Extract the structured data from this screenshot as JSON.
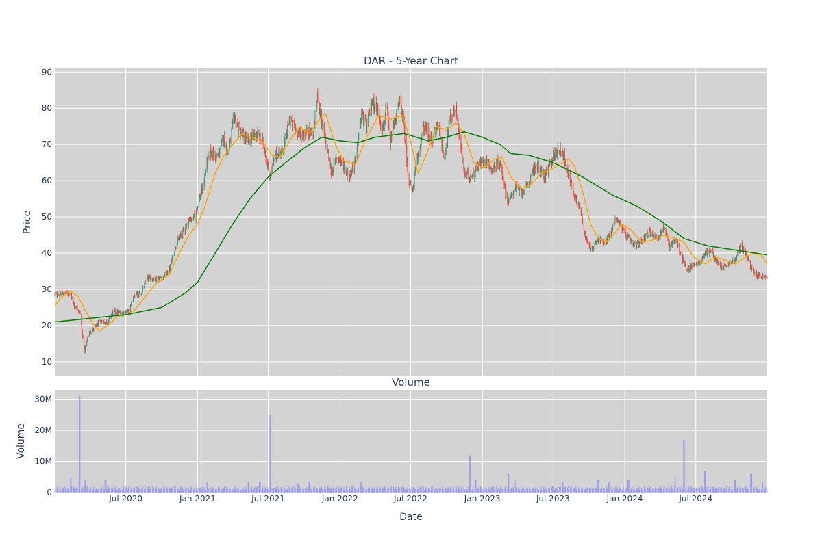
{
  "chart_data": [
    {
      "type": "candlestick",
      "title": "DAR - 5-Year Chart",
      "ylabel": "Price",
      "ylim": [
        6,
        91
      ],
      "yticks": [
        10,
        20,
        30,
        40,
        50,
        60,
        70,
        80,
        90
      ],
      "x_range": [
        "2020-01-01",
        "2024-12-31"
      ],
      "grid": true,
      "colors": {
        "increasing": "#3d9970",
        "decreasing": "#ff4136",
        "ma_short": "#ffa500",
        "ma_long": "#008000",
        "plot_bg": "#d3d3d3"
      },
      "close_path": [
        [
          "2020-01-01",
          28.5
        ],
        [
          "2020-02-10",
          29
        ],
        [
          "2020-02-20",
          25.5
        ],
        [
          "2020-03-05",
          24
        ],
        [
          "2020-03-12",
          17
        ],
        [
          "2020-03-18",
          13
        ],
        [
          "2020-03-28",
          18
        ],
        [
          "2020-04-10",
          19
        ],
        [
          "2020-04-25",
          21
        ],
        [
          "2020-05-15",
          21
        ],
        [
          "2020-05-30",
          24
        ],
        [
          "2020-06-15",
          23.5
        ],
        [
          "2020-07-10",
          24
        ],
        [
          "2020-07-20",
          28
        ],
        [
          "2020-08-10",
          29
        ],
        [
          "2020-08-25",
          33
        ],
        [
          "2020-09-30",
          33
        ],
        [
          "2020-10-20",
          35
        ],
        [
          "2020-11-05",
          42
        ],
        [
          "2020-11-20",
          45
        ],
        [
          "2020-12-10",
          49
        ],
        [
          "2020-12-25",
          50
        ],
        [
          "2021-01-05",
          55
        ],
        [
          "2021-01-15",
          58
        ],
        [
          "2021-01-25",
          65
        ],
        [
          "2021-02-05",
          68
        ],
        [
          "2021-02-20",
          66
        ],
        [
          "2021-03-10",
          72
        ],
        [
          "2021-03-20",
          67
        ],
        [
          "2021-04-05",
          78
        ],
        [
          "2021-04-20",
          73
        ],
        [
          "2021-05-10",
          71
        ],
        [
          "2021-06-01",
          73
        ],
        [
          "2021-06-20",
          70
        ],
        [
          "2021-07-05",
          61
        ],
        [
          "2021-07-20",
          67
        ],
        [
          "2021-08-10",
          69
        ],
        [
          "2021-08-25",
          77
        ],
        [
          "2021-09-10",
          74
        ],
        [
          "2021-09-25",
          72
        ],
        [
          "2021-10-10",
          74
        ],
        [
          "2021-10-25",
          73
        ],
        [
          "2021-11-05",
          84
        ],
        [
          "2021-11-15",
          76
        ],
        [
          "2021-12-01",
          68
        ],
        [
          "2021-12-10",
          62
        ],
        [
          "2021-12-25",
          67
        ],
        [
          "2022-01-10",
          64
        ],
        [
          "2022-01-25",
          61
        ],
        [
          "2022-02-10",
          66
        ],
        [
          "2022-02-25",
          78
        ],
        [
          "2022-03-10",
          75
        ],
        [
          "2022-03-25",
          82
        ],
        [
          "2022-04-10",
          79
        ],
        [
          "2022-04-20",
          74
        ],
        [
          "2022-05-01",
          80
        ],
        [
          "2022-05-10",
          70
        ],
        [
          "2022-05-20",
          76
        ],
        [
          "2022-06-05",
          82
        ],
        [
          "2022-06-15",
          74
        ],
        [
          "2022-06-25",
          61
        ],
        [
          "2022-07-05",
          57
        ],
        [
          "2022-07-20",
          67
        ],
        [
          "2022-08-05",
          75
        ],
        [
          "2022-08-25",
          71
        ],
        [
          "2022-09-10",
          76
        ],
        [
          "2022-09-25",
          66
        ],
        [
          "2022-10-10",
          77
        ],
        [
          "2022-10-25",
          80
        ],
        [
          "2022-11-05",
          71
        ],
        [
          "2022-11-15",
          62
        ],
        [
          "2022-12-01",
          61
        ],
        [
          "2022-12-20",
          64
        ],
        [
          "2023-01-10",
          66
        ],
        [
          "2023-01-25",
          63
        ],
        [
          "2023-02-15",
          65
        ],
        [
          "2023-03-01",
          57
        ],
        [
          "2023-03-10",
          54
        ],
        [
          "2023-03-25",
          58
        ],
        [
          "2023-04-10",
          57
        ],
        [
          "2023-04-25",
          58
        ],
        [
          "2023-05-10",
          63
        ],
        [
          "2023-05-25",
          64
        ],
        [
          "2023-06-10",
          61
        ],
        [
          "2023-06-25",
          65
        ],
        [
          "2023-07-15",
          69
        ],
        [
          "2023-07-25",
          68
        ],
        [
          "2023-08-05",
          63
        ],
        [
          "2023-08-15",
          60
        ],
        [
          "2023-08-25",
          56
        ],
        [
          "2023-09-10",
          52
        ],
        [
          "2023-09-25",
          43
        ],
        [
          "2023-10-10",
          41
        ],
        [
          "2023-10-25",
          44
        ],
        [
          "2023-11-10",
          43
        ],
        [
          "2023-11-25",
          45
        ],
        [
          "2023-12-10",
          50
        ],
        [
          "2023-12-25",
          47
        ],
        [
          "2024-01-10",
          44
        ],
        [
          "2024-01-25",
          42
        ],
        [
          "2024-02-10",
          43
        ],
        [
          "2024-02-25",
          45
        ],
        [
          "2024-03-10",
          46
        ],
        [
          "2024-03-25",
          44
        ],
        [
          "2024-04-10",
          47
        ],
        [
          "2024-04-25",
          42
        ],
        [
          "2024-05-10",
          44
        ],
        [
          "2024-05-25",
          39
        ],
        [
          "2024-06-10",
          35
        ],
        [
          "2024-06-25",
          37
        ],
        [
          "2024-07-10",
          37
        ],
        [
          "2024-07-25",
          40
        ],
        [
          "2024-08-10",
          41
        ],
        [
          "2024-08-25",
          37
        ],
        [
          "2024-09-10",
          36
        ],
        [
          "2024-09-25",
          37
        ],
        [
          "2024-10-10",
          38
        ],
        [
          "2024-10-25",
          42
        ],
        [
          "2024-11-05",
          40
        ],
        [
          "2024-11-20",
          36
        ],
        [
          "2024-12-05",
          34
        ],
        [
          "2024-12-31",
          33
        ]
      ],
      "ma_short_path": [
        [
          "2020-01-01",
          25.5
        ],
        [
          "2020-01-20",
          28
        ],
        [
          "2020-02-10",
          29.5
        ],
        [
          "2020-03-01",
          28
        ],
        [
          "2020-03-20",
          24
        ],
        [
          "2020-04-10",
          20
        ],
        [
          "2020-04-25",
          18.5
        ],
        [
          "2020-05-15",
          20
        ],
        [
          "2020-06-10",
          22.5
        ],
        [
          "2020-07-05",
          23
        ],
        [
          "2020-07-25",
          24.5
        ],
        [
          "2020-08-20",
          28
        ],
        [
          "2020-09-20",
          32
        ],
        [
          "2020-10-20",
          34
        ],
        [
          "2020-11-15",
          40
        ],
        [
          "2020-12-10",
          45
        ],
        [
          "2021-01-01",
          48
        ],
        [
          "2021-01-20",
          53
        ],
        [
          "2021-02-15",
          62
        ],
        [
          "2021-03-10",
          67
        ],
        [
          "2021-04-01",
          70
        ],
        [
          "2021-04-25",
          73
        ],
        [
          "2021-05-20",
          72
        ],
        [
          "2021-06-15",
          71
        ],
        [
          "2021-07-10",
          67
        ],
        [
          "2021-08-01",
          66.5
        ],
        [
          "2021-08-25",
          71
        ],
        [
          "2021-09-20",
          75
        ],
        [
          "2021-10-15",
          73
        ],
        [
          "2021-11-10",
          77
        ],
        [
          "2021-11-25",
          78.5
        ],
        [
          "2021-12-20",
          70
        ],
        [
          "2022-01-10",
          65.5
        ],
        [
          "2022-02-10",
          64.5
        ],
        [
          "2022-03-10",
          72
        ],
        [
          "2022-04-10",
          78
        ],
        [
          "2022-05-10",
          77
        ],
        [
          "2022-06-10",
          78
        ],
        [
          "2022-07-01",
          71
        ],
        [
          "2022-07-20",
          62
        ],
        [
          "2022-08-10",
          67
        ],
        [
          "2022-09-05",
          75
        ],
        [
          "2022-10-01",
          74
        ],
        [
          "2022-10-25",
          76
        ],
        [
          "2022-11-15",
          73
        ],
        [
          "2022-12-10",
          65
        ],
        [
          "2023-01-05",
          63.5
        ],
        [
          "2023-02-01",
          66
        ],
        [
          "2023-02-20",
          66.5
        ],
        [
          "2023-03-15",
          61
        ],
        [
          "2023-04-10",
          58
        ],
        [
          "2023-05-01",
          58.5
        ],
        [
          "2023-06-01",
          62
        ],
        [
          "2023-06-25",
          63
        ],
        [
          "2023-07-25",
          65
        ],
        [
          "2023-08-10",
          66
        ],
        [
          "2023-08-25",
          64
        ],
        [
          "2023-09-15",
          57
        ],
        [
          "2023-10-05",
          48
        ],
        [
          "2023-10-25",
          44
        ],
        [
          "2023-11-15",
          43
        ],
        [
          "2023-12-10",
          46
        ],
        [
          "2023-12-25",
          48
        ],
        [
          "2024-01-20",
          46
        ],
        [
          "2024-02-15",
          43
        ],
        [
          "2024-03-10",
          43.5
        ],
        [
          "2024-04-10",
          45
        ],
        [
          "2024-05-10",
          44
        ],
        [
          "2024-06-01",
          43
        ],
        [
          "2024-06-25",
          39
        ],
        [
          "2024-07-25",
          37
        ],
        [
          "2024-08-20",
          39
        ],
        [
          "2024-09-15",
          38
        ],
        [
          "2024-10-10",
          37
        ],
        [
          "2024-11-05",
          39
        ],
        [
          "2024-11-25",
          40
        ],
        [
          "2024-12-15",
          39.5
        ],
        [
          "2024-12-31",
          37
        ]
      ],
      "ma_long_path": [
        [
          "2020-01-01",
          21
        ],
        [
          "2020-04-01",
          22
        ],
        [
          "2020-07-01",
          23
        ],
        [
          "2020-10-01",
          25
        ],
        [
          "2020-12-01",
          29
        ],
        [
          "2021-01-01",
          32
        ],
        [
          "2021-02-15",
          40
        ],
        [
          "2021-04-01",
          48
        ],
        [
          "2021-05-15",
          55
        ],
        [
          "2021-07-01",
          61
        ],
        [
          "2021-08-15",
          65
        ],
        [
          "2021-10-01",
          69
        ],
        [
          "2021-11-15",
          72
        ],
        [
          "2022-01-01",
          71
        ],
        [
          "2022-02-15",
          70.5
        ],
        [
          "2022-04-01",
          72
        ],
        [
          "2022-06-15",
          73
        ],
        [
          "2022-08-15",
          71
        ],
        [
          "2022-10-01",
          72
        ],
        [
          "2022-11-15",
          73.5
        ],
        [
          "2023-01-01",
          72
        ],
        [
          "2023-02-15",
          70
        ],
        [
          "2023-03-15",
          67.5
        ],
        [
          "2023-05-01",
          67
        ],
        [
          "2023-07-01",
          65
        ],
        [
          "2023-09-15",
          61
        ],
        [
          "2023-12-01",
          56
        ],
        [
          "2024-02-01",
          53
        ],
        [
          "2024-04-01",
          49
        ],
        [
          "2024-06-01",
          44
        ],
        [
          "2024-08-01",
          42
        ],
        [
          "2024-10-01",
          41
        ],
        [
          "2024-12-31",
          39.5
        ]
      ]
    },
    {
      "type": "bar",
      "title": "Volume",
      "xlabel": "Date",
      "ylabel": "Volume",
      "ylim": [
        0,
        33000000
      ],
      "yticks": [
        0,
        10000000,
        20000000,
        30000000
      ],
      "ytick_labels": [
        "0",
        "10M",
        "20M",
        "30M"
      ],
      "x_range": [
        "2020-01-01",
        "2024-12-31"
      ],
      "xtick_dates": [
        "2020-07-01",
        "2021-01-01",
        "2021-07-01",
        "2022-01-01",
        "2022-07-01",
        "2023-01-01",
        "2023-07-01",
        "2024-01-01",
        "2024-07-01"
      ],
      "xtick_labels": [
        "Jul 2020",
        "Jan 2021",
        "Jul 2021",
        "Jan 2022",
        "Jul 2022",
        "Jan 2023",
        "Jul 2023",
        "Jan 2024",
        "Jul 2024"
      ],
      "color": "#8080ff",
      "base_volume": 1500000,
      "spikes": [
        [
          "2020-02-10",
          5000000
        ],
        [
          "2020-03-05",
          31000000
        ],
        [
          "2020-03-20",
          4000000
        ],
        [
          "2020-05-10",
          4000000
        ],
        [
          "2021-01-25",
          3500000
        ],
        [
          "2021-05-10",
          3500000
        ],
        [
          "2021-06-10",
          3500000
        ],
        [
          "2021-07-05",
          25000000
        ],
        [
          "2021-09-15",
          3000000
        ],
        [
          "2021-10-15",
          3500000
        ],
        [
          "2022-02-25",
          3500000
        ],
        [
          "2022-12-01",
          12000000
        ],
        [
          "2022-12-15",
          4000000
        ],
        [
          "2023-03-10",
          6000000
        ],
        [
          "2023-03-25",
          4000000
        ],
        [
          "2023-07-25",
          3500000
        ],
        [
          "2023-10-25",
          4000000
        ],
        [
          "2023-11-20",
          3500000
        ],
        [
          "2024-01-10",
          4000000
        ],
        [
          "2024-05-10",
          4500000
        ],
        [
          "2024-06-01",
          17000000
        ],
        [
          "2024-07-25",
          7000000
        ],
        [
          "2024-10-10",
          4000000
        ],
        [
          "2024-11-20",
          6000000
        ],
        [
          "2024-12-20",
          3500000
        ]
      ]
    }
  ]
}
